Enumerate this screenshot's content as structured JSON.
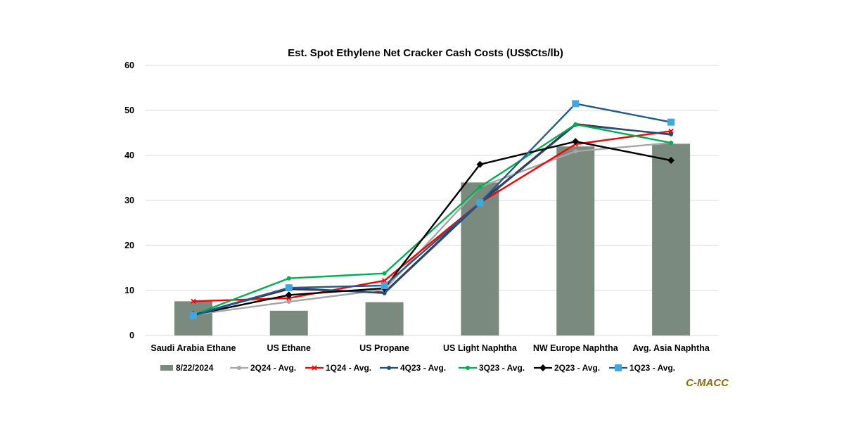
{
  "chart_data": {
    "type": "bar",
    "title": "Est. Spot Ethylene Net Cracker Cash Costs (US$Cts/lb)",
    "xlabel": "",
    "ylabel": "",
    "ylim": [
      0,
      60
    ],
    "yticks": [
      0,
      10,
      20,
      30,
      40,
      50,
      60
    ],
    "grid": true,
    "legend_position": "bottom",
    "categories": [
      "Saudi Arabia Ethane",
      "US Ethane",
      "US Propane",
      "US Light Naphtha",
      "NW Europe Naphtha",
      "Avg. Asia Naphtha"
    ],
    "series": [
      {
        "name": "8/22/2024",
        "kind": "bar",
        "color": "#7b8a7e",
        "values": [
          7.6,
          5.5,
          7.4,
          34.0,
          42.0,
          42.6
        ]
      },
      {
        "name": "2Q24 - Avg.",
        "kind": "line",
        "color": "#a6a6a6",
        "marker": "circle",
        "values": [
          4.6,
          7.5,
          10.2,
          33.0,
          40.9,
          42.8
        ]
      },
      {
        "name": "1Q24 - Avg.",
        "kind": "line",
        "color": "#ff0000",
        "marker": "x",
        "values": [
          7.6,
          8.3,
          12.2,
          29.5,
          42.5,
          45.4
        ]
      },
      {
        "name": "4Q23 - Avg.",
        "kind": "line",
        "color": "#1f4e79",
        "marker": "circle",
        "values": [
          4.6,
          10.6,
          9.4,
          29.4,
          46.8,
          44.7
        ]
      },
      {
        "name": "3Q23 - Avg.",
        "kind": "line",
        "color": "#00b050",
        "marker": "circle",
        "values": [
          4.6,
          12.7,
          13.8,
          33.0,
          46.9,
          42.8
        ]
      },
      {
        "name": "2Q23 - Avg.",
        "kind": "line",
        "color": "#000000",
        "marker": "diamond",
        "values": [
          4.6,
          9.0,
          10.5,
          38.0,
          43.1,
          38.9
        ]
      },
      {
        "name": "1Q23 - Avg.",
        "kind": "line",
        "color": "#1f5c8b",
        "markerColor": "#3fa9df",
        "marker": "square",
        "values": [
          4.4,
          10.6,
          11.1,
          29.5,
          51.5,
          47.4
        ]
      }
    ],
    "extra_lines": [
      {
        "color": "#5c1414",
        "values": [
          4.6,
          10.3,
          9.6,
          29.6,
          47.0,
          44.6
        ]
      }
    ]
  },
  "brand": "C-MACC"
}
